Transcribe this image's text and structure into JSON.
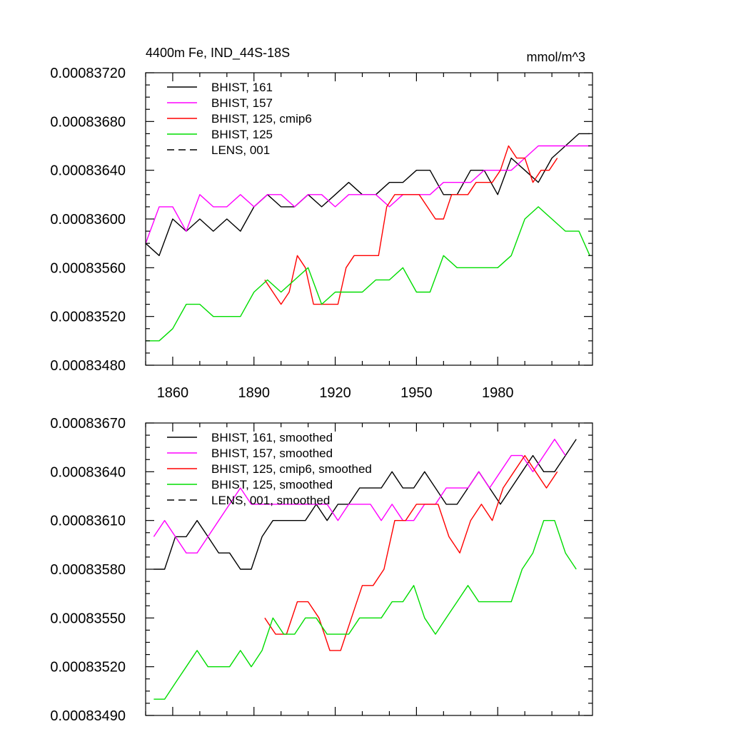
{
  "chart_data": [
    {
      "type": "line",
      "title": "4400m Fe, IND_44S-18S",
      "units": "mmol/m^3",
      "xlim": [
        1850,
        2015
      ],
      "ylim": [
        0.0008348,
        0.0008372
      ],
      "xticks": [
        1860,
        1890,
        1920,
        1950,
        1980
      ],
      "xtick_labels": [
        "1860",
        "1890",
        "1920",
        "1950",
        "1980"
      ],
      "yticks": [
        0.0008348,
        0.0008352,
        0.0008356,
        0.000836,
        0.0008364,
        0.0008368,
        0.0008372
      ],
      "ytick_labels": [
        "0.00083480",
        "0.00083520",
        "0.00083560",
        "0.00083600",
        "0.00083640",
        "0.00083680",
        "0.00083720"
      ],
      "legend_position": "top-left",
      "series": [
        {
          "name": "BHIST, 161",
          "color": "#000000",
          "dash": "solid",
          "x": [
            1850,
            1855,
            1860,
            1865,
            1870,
            1875,
            1880,
            1885,
            1890,
            1895,
            1900,
            1905,
            1910,
            1915,
            1920,
            1925,
            1930,
            1935,
            1940,
            1945,
            1950,
            1955,
            1960,
            1965,
            1970,
            1975,
            1980,
            1985,
            1990,
            1995,
            2000,
            2005,
            2010,
            2014
          ],
          "y": [
            0.0008358,
            0.0008357,
            0.000836,
            0.0008359,
            0.000836,
            0.0008359,
            0.000836,
            0.0008359,
            0.0008361,
            0.0008362,
            0.0008361,
            0.0008361,
            0.0008362,
            0.0008361,
            0.0008362,
            0.0008363,
            0.0008362,
            0.0008362,
            0.0008363,
            0.0008363,
            0.0008364,
            0.0008364,
            0.0008362,
            0.0008362,
            0.0008364,
            0.0008364,
            0.0008362,
            0.0008365,
            0.0008364,
            0.0008363,
            0.0008365,
            0.0008366,
            0.0008367,
            0.0008367
          ]
        },
        {
          "name": "BHIST, 157",
          "color": "#ff00ff",
          "dash": "solid",
          "x": [
            1850,
            1855,
            1860,
            1865,
            1870,
            1875,
            1880,
            1885,
            1890,
            1895,
            1900,
            1905,
            1910,
            1915,
            1920,
            1925,
            1930,
            1935,
            1940,
            1945,
            1950,
            1955,
            1960,
            1965,
            1970,
            1975,
            1980,
            1985,
            1990,
            1995,
            2000,
            2005,
            2010,
            2014
          ],
          "y": [
            0.0008358,
            0.0008361,
            0.0008361,
            0.0008359,
            0.0008362,
            0.0008361,
            0.0008361,
            0.0008362,
            0.0008361,
            0.0008362,
            0.0008362,
            0.0008361,
            0.0008362,
            0.0008362,
            0.0008361,
            0.0008362,
            0.0008362,
            0.0008362,
            0.0008361,
            0.0008362,
            0.0008362,
            0.0008362,
            0.0008363,
            0.0008363,
            0.0008363,
            0.0008364,
            0.0008364,
            0.0008364,
            0.0008365,
            0.0008366,
            0.0008366,
            0.0008366,
            0.0008366,
            0.0008366
          ]
        },
        {
          "name": "BHIST, 125, cmip6",
          "color": "#ff0000",
          "dash": "solid",
          "x": [
            1894,
            1897,
            1900,
            1903,
            1906,
            1909,
            1912,
            1915,
            1918,
            1921,
            1924,
            1927,
            1930,
            1933,
            1936,
            1939,
            1942,
            1945,
            1948,
            1951,
            1954,
            1957,
            1960,
            1963,
            1966,
            1969,
            1972,
            1975,
            1978,
            1981,
            1984,
            1987,
            1990,
            1993,
            1996,
            1999,
            2002
          ],
          "y": [
            0.0008355,
            0.0008354,
            0.0008353,
            0.0008354,
            0.0008357,
            0.0008356,
            0.0008353,
            0.0008353,
            0.0008353,
            0.0008353,
            0.0008356,
            0.0008357,
            0.0008357,
            0.0008357,
            0.0008357,
            0.0008361,
            0.0008362,
            0.0008362,
            0.0008362,
            0.0008362,
            0.0008361,
            0.000836,
            0.000836,
            0.0008362,
            0.0008362,
            0.0008362,
            0.0008363,
            0.0008363,
            0.0008363,
            0.0008364,
            0.0008366,
            0.0008365,
            0.0008365,
            0.0008363,
            0.0008364,
            0.0008364,
            0.0008365
          ]
        },
        {
          "name": "BHIST, 125",
          "color": "#00dd00",
          "dash": "solid",
          "x": [
            1850,
            1855,
            1860,
            1865,
            1870,
            1875,
            1880,
            1885,
            1890,
            1895,
            1900,
            1905,
            1910,
            1915,
            1920,
            1925,
            1930,
            1935,
            1940,
            1945,
            1950,
            1955,
            1960,
            1965,
            1970,
            1975,
            1980,
            1985,
            1990,
            1995,
            2000,
            2005,
            2010,
            2014
          ],
          "y": [
            0.000835,
            0.000835,
            0.0008351,
            0.0008353,
            0.0008353,
            0.0008352,
            0.0008352,
            0.0008352,
            0.0008354,
            0.0008355,
            0.0008354,
            0.0008355,
            0.0008356,
            0.0008353,
            0.0008354,
            0.0008354,
            0.0008354,
            0.0008355,
            0.0008355,
            0.0008356,
            0.0008354,
            0.0008354,
            0.0008357,
            0.0008356,
            0.0008356,
            0.0008356,
            0.0008356,
            0.0008357,
            0.000836,
            0.0008361,
            0.000836,
            0.0008359,
            0.0008359,
            0.0008357
          ]
        },
        {
          "name": "LENS, 001",
          "color": "#000000",
          "dash": "dashed",
          "x": [],
          "y": []
        }
      ]
    },
    {
      "type": "line",
      "xlim": [
        1850,
        2015
      ],
      "ylim": [
        0.0008349,
        0.0008367
      ],
      "xticks": [
        1860,
        1890,
        1920,
        1950,
        1980
      ],
      "xtick_labels": [],
      "yticks": [
        0.0008349,
        0.0008352,
        0.0008355,
        0.0008358,
        0.0008361,
        0.0008364,
        0.0008367
      ],
      "ytick_labels": [
        "0.00083490",
        "0.00083520",
        "0.00083550",
        "0.00083580",
        "0.00083610",
        "0.00083640",
        "0.00083670"
      ],
      "legend_position": "top-left",
      "series": [
        {
          "name": "BHIST, 161, smoothed",
          "color": "#000000",
          "dash": "solid",
          "x": [
            1853,
            1857,
            1861,
            1865,
            1869,
            1873,
            1877,
            1881,
            1885,
            1889,
            1893,
            1897,
            1901,
            1905,
            1909,
            1913,
            1917,
            1921,
            1925,
            1929,
            1933,
            1937,
            1941,
            1945,
            1949,
            1953,
            1957,
            1961,
            1965,
            1969,
            1973,
            1977,
            1981,
            1985,
            1989,
            1993,
            1997,
            2001,
            2005,
            2009
          ],
          "y": [
            0.0008358,
            0.0008358,
            0.000836,
            0.000836,
            0.0008361,
            0.000836,
            0.0008359,
            0.0008359,
            0.0008358,
            0.0008358,
            0.000836,
            0.0008361,
            0.0008361,
            0.0008361,
            0.0008361,
            0.0008362,
            0.0008361,
            0.0008362,
            0.0008362,
            0.0008363,
            0.0008363,
            0.0008363,
            0.0008364,
            0.0008363,
            0.0008363,
            0.0008364,
            0.0008363,
            0.0008362,
            0.0008362,
            0.0008363,
            0.0008364,
            0.0008363,
            0.0008362,
            0.0008363,
            0.0008364,
            0.0008365,
            0.0008364,
            0.0008364,
            0.0008365,
            0.0008366
          ]
        },
        {
          "name": "BHIST, 157, smoothed",
          "color": "#ff00ff",
          "dash": "solid",
          "x": [
            1853,
            1857,
            1861,
            1865,
            1869,
            1873,
            1877,
            1881,
            1885,
            1889,
            1893,
            1897,
            1901,
            1905,
            1909,
            1913,
            1917,
            1921,
            1925,
            1929,
            1933,
            1937,
            1941,
            1945,
            1949,
            1953,
            1957,
            1961,
            1965,
            1969,
            1973,
            1977,
            1981,
            1985,
            1989,
            1993,
            1997,
            2001,
            2005
          ],
          "y": [
            0.000836,
            0.0008361,
            0.000836,
            0.0008359,
            0.0008359,
            0.000836,
            0.0008361,
            0.0008362,
            0.0008363,
            0.0008362,
            0.0008362,
            0.0008362,
            0.0008362,
            0.0008362,
            0.0008362,
            0.0008362,
            0.0008362,
            0.0008361,
            0.0008362,
            0.0008362,
            0.0008362,
            0.0008361,
            0.0008362,
            0.0008361,
            0.0008361,
            0.0008362,
            0.0008362,
            0.0008363,
            0.0008363,
            0.0008363,
            0.0008364,
            0.0008363,
            0.0008364,
            0.0008365,
            0.0008365,
            0.0008364,
            0.0008365,
            0.0008366,
            0.0008365
          ]
        },
        {
          "name": "BHIST, 125, cmip6, smoothed",
          "color": "#ff0000",
          "dash": "solid",
          "x": [
            1894,
            1898,
            1902,
            1906,
            1910,
            1914,
            1918,
            1922,
            1926,
            1930,
            1934,
            1938,
            1942,
            1946,
            1950,
            1954,
            1958,
            1962,
            1966,
            1970,
            1974,
            1978,
            1982,
            1986,
            1990,
            1994,
            1998,
            2002
          ],
          "y": [
            0.0008355,
            0.0008354,
            0.0008354,
            0.0008356,
            0.0008356,
            0.0008355,
            0.0008353,
            0.0008353,
            0.0008355,
            0.0008357,
            0.0008357,
            0.0008358,
            0.0008361,
            0.0008361,
            0.0008362,
            0.0008362,
            0.0008362,
            0.000836,
            0.0008359,
            0.0008361,
            0.0008362,
            0.0008361,
            0.0008363,
            0.0008364,
            0.0008365,
            0.0008364,
            0.0008363,
            0.0008364
          ]
        },
        {
          "name": "BHIST, 125, smoothed",
          "color": "#00dd00",
          "dash": "solid",
          "x": [
            1853,
            1857,
            1861,
            1865,
            1869,
            1873,
            1877,
            1881,
            1885,
            1889,
            1893,
            1897,
            1901,
            1905,
            1909,
            1913,
            1917,
            1921,
            1925,
            1929,
            1933,
            1937,
            1941,
            1945,
            1949,
            1953,
            1957,
            1961,
            1965,
            1969,
            1973,
            1977,
            1981,
            1985,
            1989,
            1993,
            1997,
            2001,
            2005,
            2009
          ],
          "y": [
            0.000835,
            0.000835,
            0.0008351,
            0.0008352,
            0.0008353,
            0.0008352,
            0.0008352,
            0.0008352,
            0.0008353,
            0.0008352,
            0.0008353,
            0.0008355,
            0.0008354,
            0.0008354,
            0.0008355,
            0.0008355,
            0.0008354,
            0.0008354,
            0.0008354,
            0.0008355,
            0.0008355,
            0.0008355,
            0.0008356,
            0.0008356,
            0.0008357,
            0.0008355,
            0.0008354,
            0.0008355,
            0.0008356,
            0.0008357,
            0.0008356,
            0.0008356,
            0.0008356,
            0.0008356,
            0.0008358,
            0.0008359,
            0.0008361,
            0.0008361,
            0.0008359,
            0.0008358
          ]
        },
        {
          "name": "LENS, 001, smoothed",
          "color": "#000000",
          "dash": "dashed",
          "x": [],
          "y": []
        }
      ]
    }
  ]
}
